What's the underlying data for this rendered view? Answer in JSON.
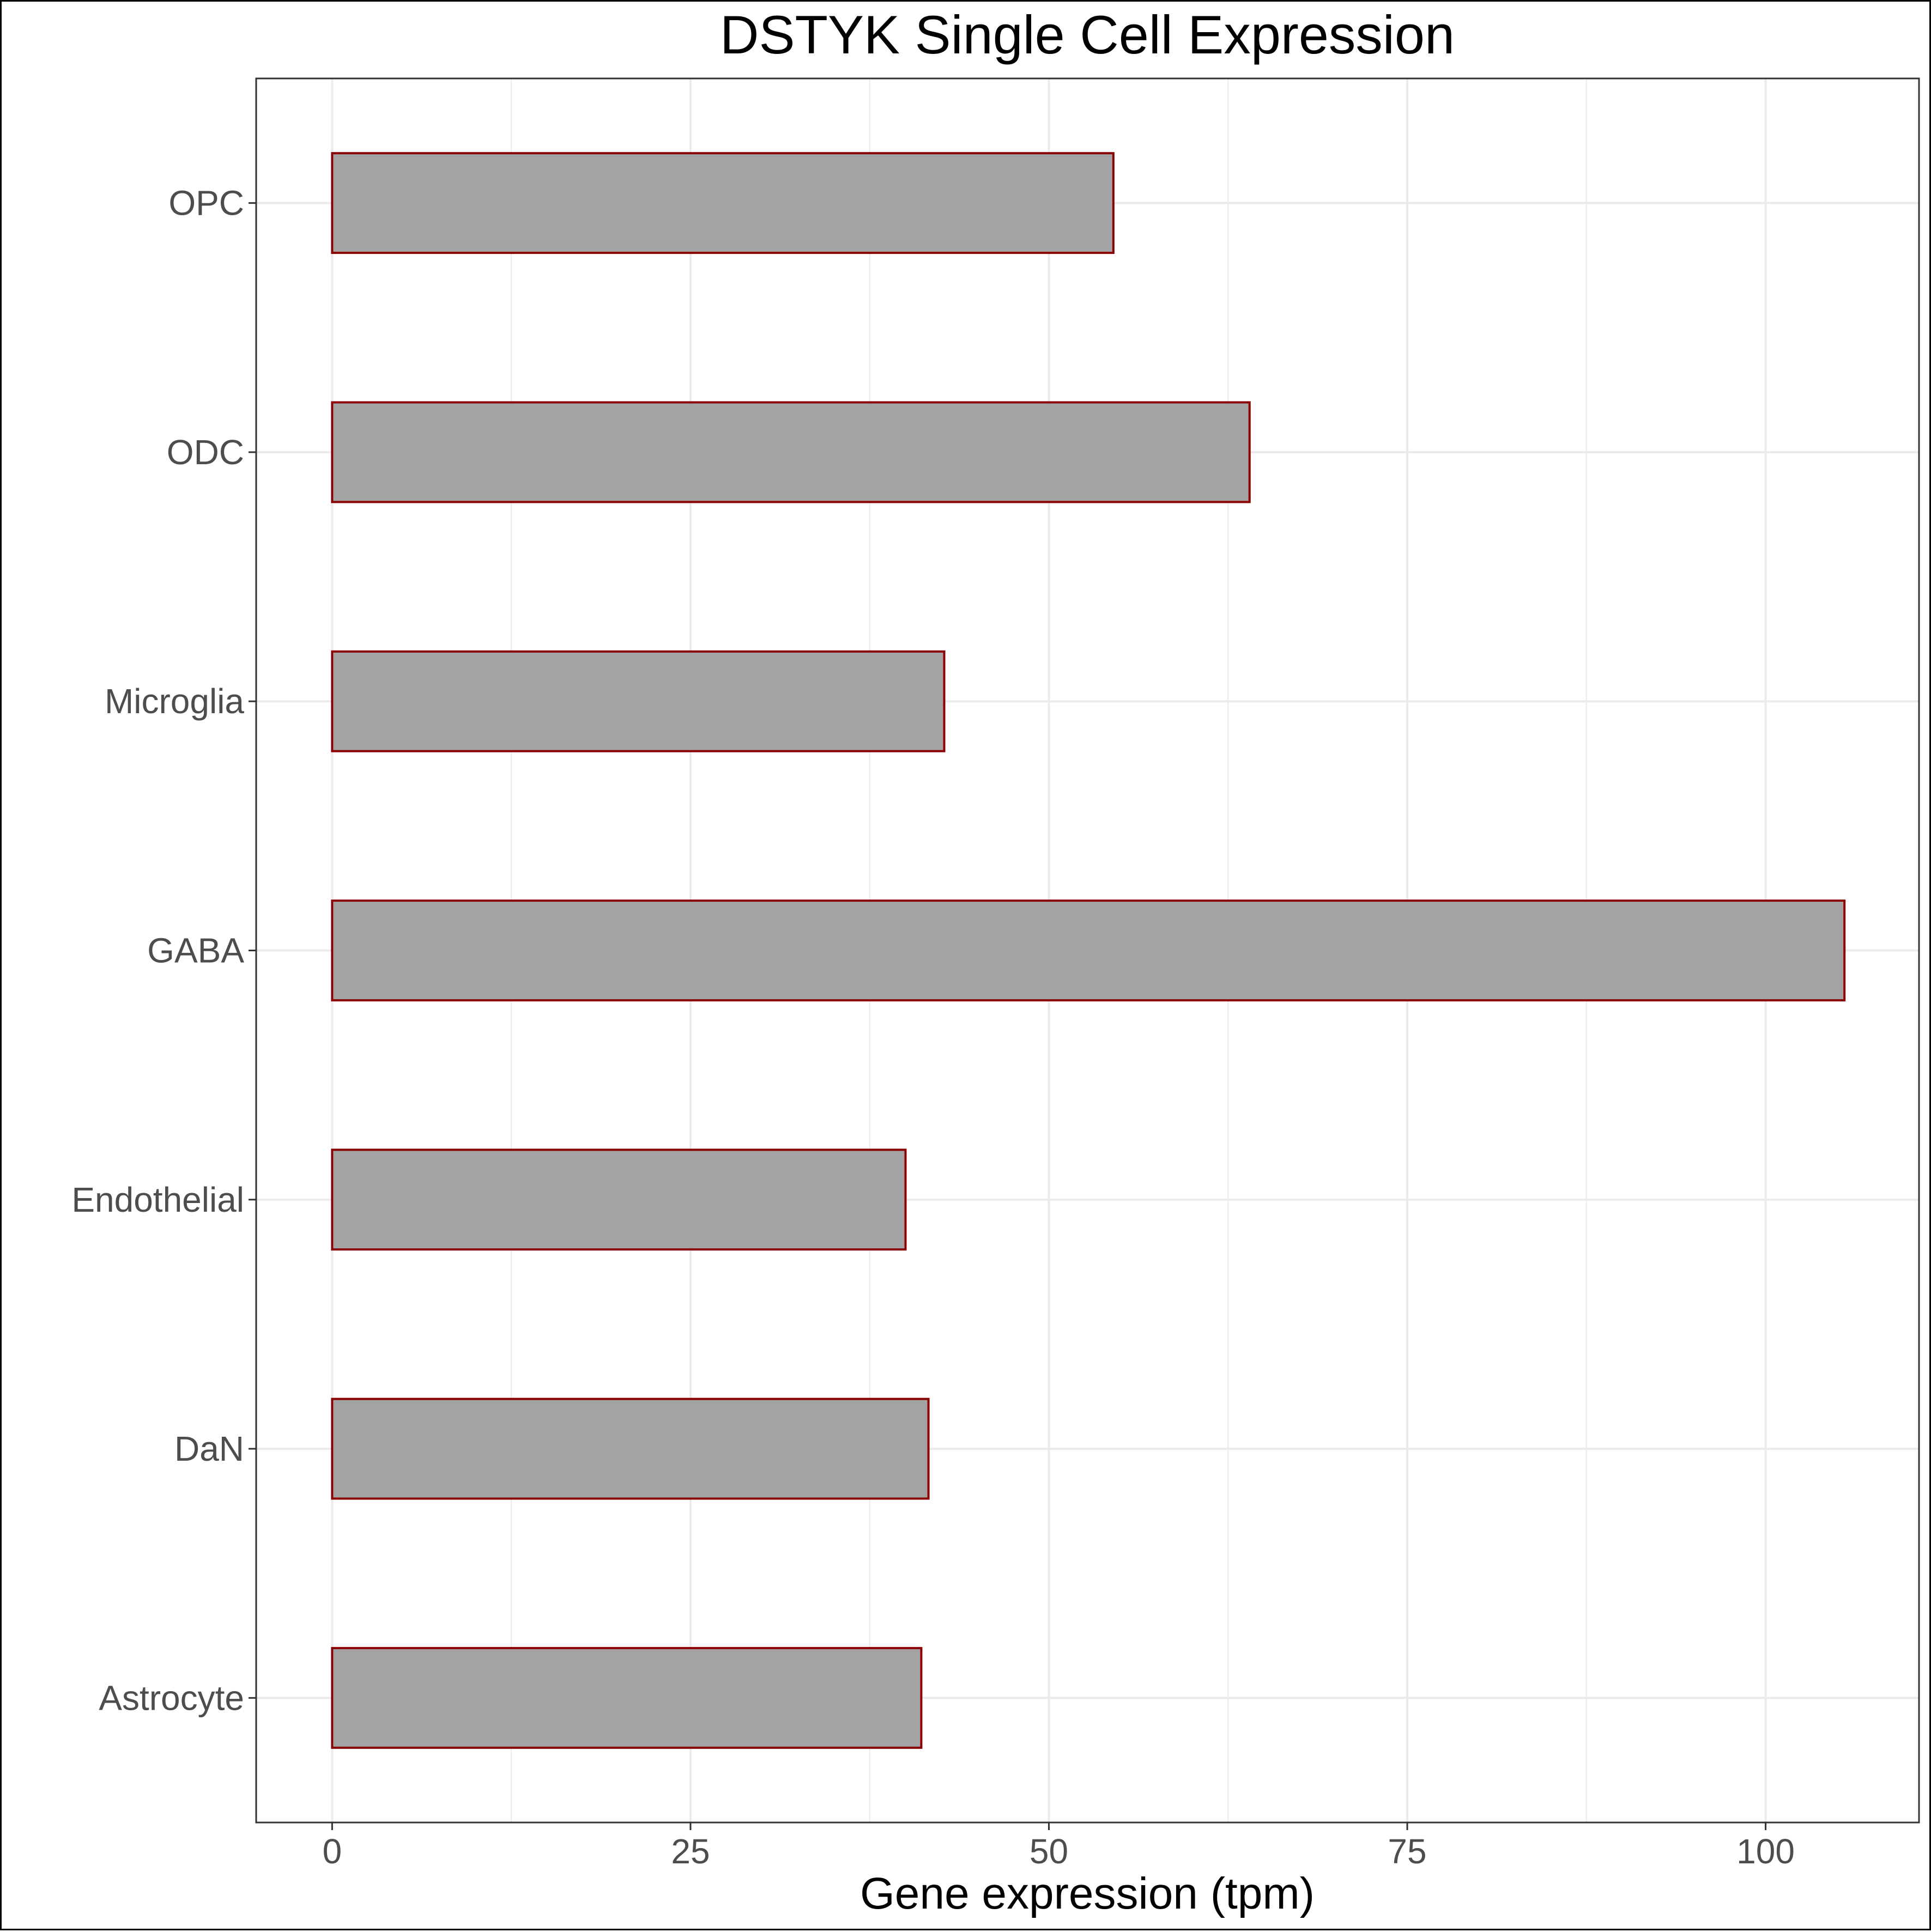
{
  "chart_data": {
    "type": "bar",
    "orientation": "horizontal",
    "title": "DSTYK Single Cell Expression",
    "xlabel": "Gene expression (tpm)",
    "ylabel": "",
    "categories": [
      "OPC",
      "ODC",
      "Microglia",
      "GABA",
      "Endothelial",
      "DaN",
      "Astrocyte"
    ],
    "values": [
      54.5,
      64.0,
      42.7,
      105.5,
      40.0,
      41.6,
      41.1
    ],
    "xlim": [
      -5.3,
      110.7
    ],
    "xticks": [
      0,
      25,
      50,
      75,
      100
    ],
    "xtick_labels": [
      "0",
      "25",
      "50",
      "75",
      "100"
    ],
    "grid": true,
    "legend": "none",
    "colors": {
      "bar_fill": "#a3a3a3",
      "bar_outline": "#8b0000",
      "grid": "#ebebeb",
      "panel_border": "#333333"
    }
  }
}
